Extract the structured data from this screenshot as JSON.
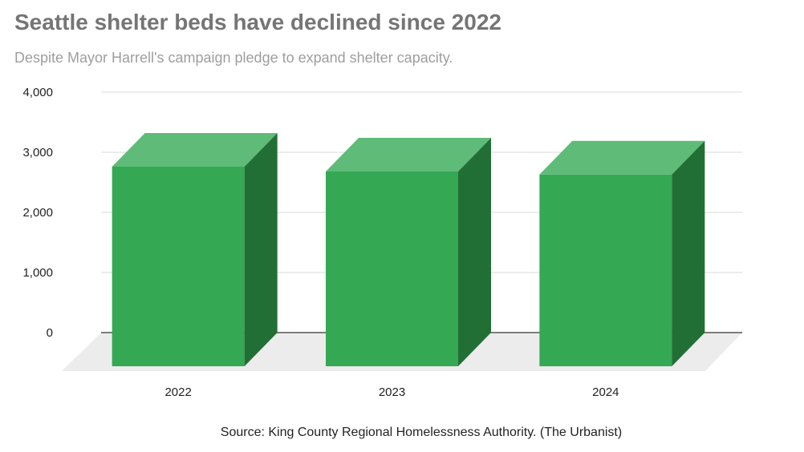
{
  "chart_data": {
    "type": "bar",
    "style": "3d",
    "title": "Seattle shelter beds have declined since 2022",
    "subtitle": "Despite Mayor Harrell's campaign pledge to expand shelter capacity.",
    "categories": [
      "2022",
      "2023",
      "2024"
    ],
    "values": [
      3320,
      3240,
      3190
    ],
    "ylim": [
      0,
      4000
    ],
    "yticks": [
      "0",
      "1,000",
      "2,000",
      "3,000",
      "4,000"
    ],
    "ytick_values": [
      0,
      1000,
      2000,
      3000,
      4000
    ],
    "grid": true,
    "legend": "none",
    "source": "Source: King County Regional Homelessness Authority. (The Urbanist)",
    "colors": {
      "front": "#34a853",
      "top": "#5ebb78",
      "side": "#226f36",
      "floor": "#ececec",
      "grid": "#d9d9d9",
      "baseline": "#555555"
    }
  }
}
